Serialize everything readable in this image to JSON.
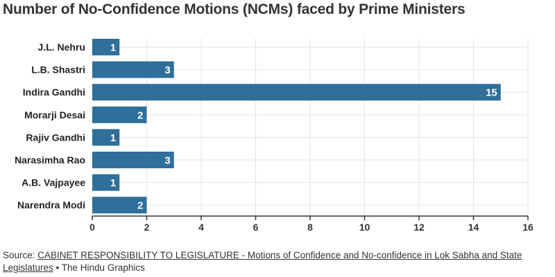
{
  "title": "Number of No-Confidence Motions (NCMs) faced by Prime Ministers",
  "source": {
    "prefix": "Source: ",
    "link_text": "CABINET RESPONSIBILITY TO LEGISLATURE - Motions of Confidence and No-confidence in Lok Sabha and State Legislatures",
    "suffix": " • The Hindu Graphics"
  },
  "colors": {
    "bar": "#2f6f9a",
    "grid": "#e3e3e3",
    "axis": "#333333"
  },
  "chart_data": {
    "type": "bar",
    "orientation": "horizontal",
    "categories": [
      "J.L. Nehru",
      "L.B. Shastri",
      "Indira Gandhi",
      "Morarji Desai",
      "Rajiv Gandhi",
      "Narasimha Rao",
      "A.B. Vajpayee",
      "Narendra Modi"
    ],
    "values": [
      1,
      3,
      15,
      2,
      1,
      3,
      1,
      2
    ],
    "title": "Number of No-Confidence Motions (NCMs) faced by Prime Ministers",
    "xlim": [
      0,
      16
    ],
    "xticks": [
      0,
      2,
      4,
      6,
      8,
      10,
      12,
      14,
      16
    ],
    "grid": true,
    "data_labels": true
  }
}
